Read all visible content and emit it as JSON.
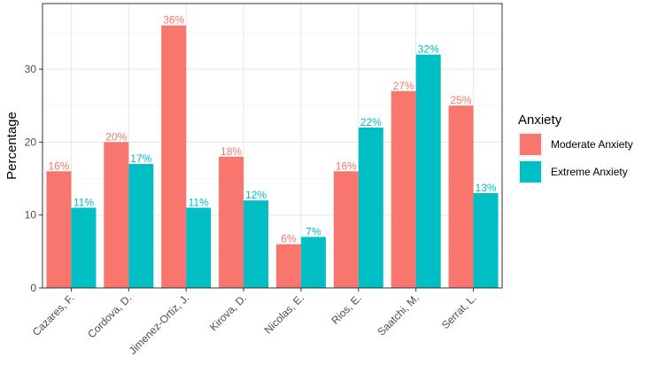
{
  "chart_data": {
    "type": "bar",
    "title": "",
    "xlabel": "",
    "ylabel": "Percentage",
    "ylim": [
      0,
      39
    ],
    "yticks": [
      0,
      10,
      20,
      30
    ],
    "grid": true,
    "legend_position": "right",
    "legend_title": "Anxiety",
    "categories": [
      "Cazares, F.",
      "Cordova, D.",
      "Jimenez-Ortiz, J.",
      "Kirova, D.",
      "Nicolas, E.",
      "Rios, E.",
      "Saatchi, M.",
      "Serrat, L."
    ],
    "series": [
      {
        "name": "Moderate Anxiety",
        "color": "#F8766D",
        "values": [
          16,
          20,
          36,
          18,
          6,
          16,
          27,
          25
        ],
        "labels": [
          "16%",
          "20%",
          "36%",
          "18%",
          "6%",
          "16%",
          "27%",
          "25%"
        ]
      },
      {
        "name": "Extreme Anxiety",
        "color": "#00BFC4",
        "values": [
          11,
          17,
          11,
          12,
          7,
          22,
          32,
          13
        ],
        "labels": [
          "11%",
          "17%",
          "11%",
          "12%",
          "7%",
          "22%",
          "32%",
          "13%"
        ]
      }
    ]
  }
}
